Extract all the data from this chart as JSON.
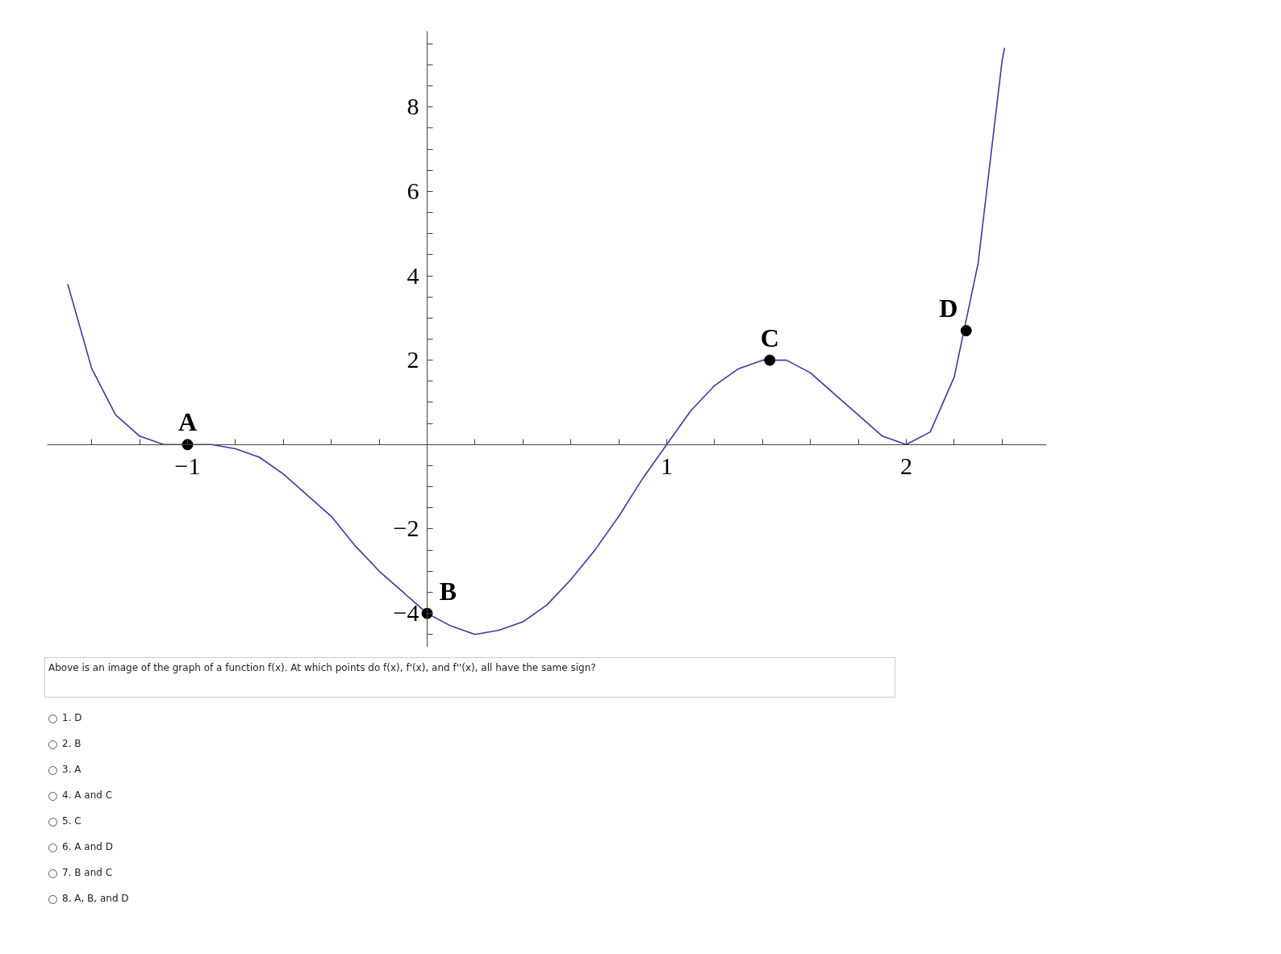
{
  "chart_data": {
    "type": "line",
    "xlim": [
      -1.586,
      2.586
    ],
    "ylim": [
      -4.8,
      9.8
    ],
    "xticks": [
      {
        "value": -1.4,
        "label": null
      },
      {
        "value": -1.2,
        "label": null
      },
      {
        "value": -1,
        "label": "−1"
      },
      {
        "value": -0.8,
        "label": null
      },
      {
        "value": -0.6,
        "label": null
      },
      {
        "value": -0.4,
        "label": null
      },
      {
        "value": -0.2,
        "label": null
      },
      {
        "value": 0.2,
        "label": null
      },
      {
        "value": 0.4,
        "label": null
      },
      {
        "value": 0.6,
        "label": null
      },
      {
        "value": 0.8,
        "label": null
      },
      1,
      {
        "value": 1.2,
        "label": null
      },
      {
        "value": 1.4,
        "label": null
      },
      {
        "value": 1.6,
        "label": null
      },
      {
        "value": 1.8,
        "label": null
      },
      2,
      {
        "value": 2.2,
        "label": null
      },
      {
        "value": 2.4,
        "label": null
      }
    ],
    "yticks": [
      {
        "value": -4.5,
        "label": null
      },
      {
        "value": -4,
        "label": "−4"
      },
      {
        "value": -3.5,
        "label": null
      },
      {
        "value": -3,
        "label": null
      },
      {
        "value": -2.5,
        "label": null
      },
      {
        "value": -2,
        "label": "−2"
      },
      {
        "value": -1.5,
        "label": null
      },
      {
        "value": -1,
        "label": null
      },
      {
        "value": -0.5,
        "label": null
      },
      {
        "value": 0.5,
        "label": null
      },
      {
        "value": 1,
        "label": null
      },
      {
        "value": 1.5,
        "label": null
      },
      2,
      {
        "value": 2.5,
        "label": null
      },
      {
        "value": 3,
        "label": null
      },
      {
        "value": 3.5,
        "label": null
      },
      4,
      {
        "value": 4.5,
        "label": null
      },
      {
        "value": 5,
        "label": null
      },
      {
        "value": 5.5,
        "label": null
      },
      6,
      {
        "value": 6.5,
        "label": null
      },
      {
        "value": 7,
        "label": null
      },
      {
        "value": 7.5,
        "label": null
      },
      8,
      {
        "value": 8.5,
        "label": null
      },
      {
        "value": 9,
        "label": null
      },
      {
        "value": 9.5,
        "label": null
      }
    ],
    "grid": false,
    "series": [
      {
        "color": "#3a3aa0",
        "marker": "none",
        "x": [
          -1.5,
          -1.4,
          -1.3,
          -1.2,
          -1.1,
          -1.0,
          -0.9,
          -0.8,
          -0.7,
          -0.6,
          -0.5,
          -0.4,
          -0.3,
          -0.2,
          -0.1,
          0,
          0.1,
          0.2,
          0.3,
          0.4,
          0.5,
          0.6,
          0.7,
          0.8,
          0.9,
          1.0,
          1.1,
          1.2,
          1.3,
          1.4,
          1.5,
          1.6,
          1.7,
          1.8,
          1.9,
          2.0,
          2.1,
          2.2,
          2.3,
          2.4,
          2.41
        ],
        "values": [
          3.8,
          1.8,
          0.7,
          0.2,
          0.0,
          0,
          0.0,
          -0.1,
          -0.3,
          -0.7,
          -1.2,
          -1.7,
          -2.4,
          -3.0,
          -3.5,
          -4,
          -4.3,
          -4.5,
          -4.4,
          -4.2,
          -3.8,
          -3.2,
          -2.5,
          -1.7,
          -0.8,
          0,
          0.8,
          1.4,
          1.8,
          2.0,
          2.0,
          1.7,
          1.2,
          0.7,
          0.2,
          0,
          0.3,
          1.6,
          4.3,
          9.1,
          9.4
        ]
      },
      {
        "type": "scatter",
        "color": "#000000",
        "marker": "circle",
        "x": [
          -1,
          0,
          1.43,
          2.25
        ],
        "values": [
          0,
          -4,
          2.0,
          2.7
        ]
      }
    ],
    "annotations": [
      {
        "text": "A",
        "x": -1,
        "y": 0
      },
      {
        "text": "B",
        "x": 0,
        "y": -4
      },
      {
        "text": "C",
        "x": 1.43,
        "y": 2.0
      },
      {
        "text": "D",
        "x": 2.25,
        "y": 2.7
      },
      "Above is an image of the graph of a function f(x). At which points do f(x), f'(x), and f''(x), all have the same sign?",
      "1. D",
      "2. B",
      "3. A",
      "4. A and C",
      "5. C",
      "6. A and D",
      "7. B and C",
      "8. A, B, and D"
    ]
  }
}
